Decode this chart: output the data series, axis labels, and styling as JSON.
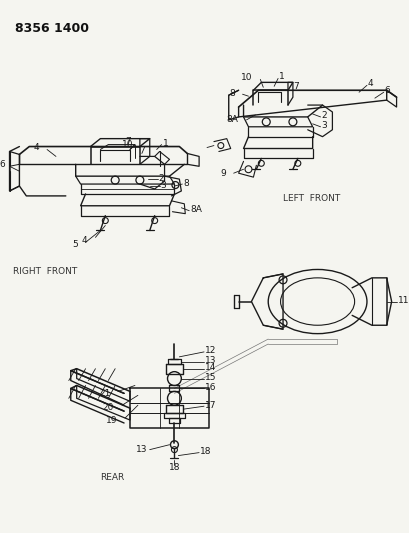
{
  "title_code": "8356 1400",
  "bg": "#f5f5f0",
  "lc": "#1a1a1a",
  "tc": "#111111",
  "section_labels": [
    "RIGHT  FRONT",
    "LEFT  FRONT",
    "REAR"
  ],
  "part11": "11",
  "rf_labels": [
    [
      "1",
      165,
      148
    ],
    [
      "10",
      148,
      155
    ],
    [
      "7",
      125,
      163
    ],
    [
      "4",
      62,
      152
    ],
    [
      "6",
      14,
      172
    ],
    [
      "2",
      152,
      198
    ],
    [
      "3",
      155,
      208
    ],
    [
      "8",
      192,
      192
    ],
    [
      "8A",
      190,
      214
    ],
    [
      "4",
      134,
      242
    ],
    [
      "5",
      80,
      252
    ]
  ],
  "lf_labels": [
    [
      "1",
      283,
      72
    ],
    [
      "10",
      262,
      78
    ],
    [
      "8",
      235,
      125
    ],
    [
      "7",
      280,
      108
    ],
    [
      "4",
      370,
      80
    ],
    [
      "6",
      385,
      88
    ],
    [
      "8A",
      212,
      143
    ],
    [
      "2",
      305,
      138
    ],
    [
      "3",
      305,
      148
    ],
    [
      "9",
      250,
      170
    ]
  ],
  "rear_labels": [
    [
      "12",
      205,
      355
    ],
    [
      "13",
      210,
      372
    ],
    [
      "14",
      212,
      386
    ],
    [
      "15",
      213,
      400
    ],
    [
      "16",
      213,
      414
    ],
    [
      "17",
      218,
      426
    ],
    [
      "18",
      205,
      455
    ],
    [
      "13",
      193,
      447
    ],
    [
      "18",
      195,
      462
    ],
    [
      "19",
      148,
      437
    ],
    [
      "20",
      142,
      425
    ],
    [
      "21",
      132,
      410
    ]
  ]
}
